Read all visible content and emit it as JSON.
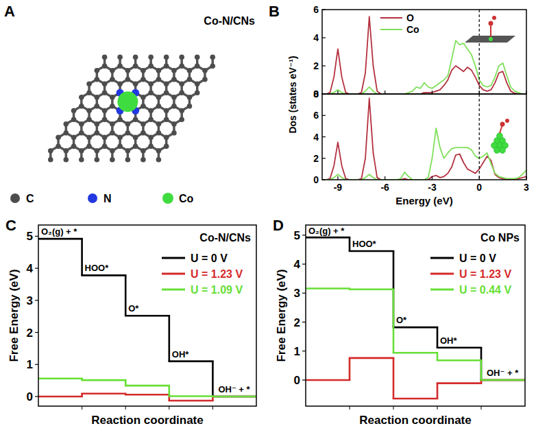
{
  "diagram": {
    "panel": "A",
    "title": "Co-N/CNs",
    "legend": [
      {
        "label": "C",
        "color": "#4d4d4d"
      },
      {
        "label": "N",
        "color": "#2238e0"
      },
      {
        "label": "Co",
        "color": "#3fdc3f"
      }
    ]
  },
  "chart_data": [
    {
      "type": "line",
      "panel": "B",
      "ylabel": "Dos (states eV⁻¹)",
      "x": [
        -10,
        -9.75,
        -9.5,
        -9.25,
        -9,
        -8.75,
        -8.5,
        -8.25,
        -8,
        -7.75,
        -7.5,
        -7.25,
        -7,
        -6.75,
        -6.5,
        -6.25,
        -6,
        -5.75,
        -5.5,
        -5.25,
        -5,
        -4.75,
        -4.5,
        -4.25,
        -4,
        -3.75,
        -3.5,
        -3.25,
        -3,
        -2.75,
        -2.5,
        -2.25,
        -2,
        -1.75,
        -1.5,
        -1.25,
        -1,
        -0.75,
        -0.5,
        -0.25,
        0,
        0.25,
        0.5,
        0.75,
        1,
        1.25,
        1.5,
        1.75,
        2,
        2.25,
        2.5,
        2.75,
        3
      ],
      "series": [
        {
          "name": "O",
          "color": "#b3303f",
          "values": [
            0,
            0,
            0.1,
            1.2,
            3.2,
            1.2,
            0.1,
            0,
            0,
            0,
            0.1,
            1.5,
            5.5,
            2.0,
            0.2,
            0,
            0,
            0,
            0,
            0,
            0,
            0,
            0,
            0,
            0,
            0,
            0.1,
            0.1,
            0.1,
            0.2,
            0.3,
            0.6,
            1.0,
            1.7,
            2.0,
            1.8,
            1.6,
            1.9,
            1.7,
            1.2,
            0.6,
            0.3,
            0.2,
            0.3,
            0.8,
            1.5,
            1.6,
            0.8,
            0.2,
            0.05,
            0,
            0,
            0
          ]
        },
        {
          "name": "Co",
          "color": "#7fe05a",
          "values": [
            0,
            0,
            0,
            0.1,
            0.3,
            0.1,
            0,
            0,
            0,
            0,
            0,
            0.2,
            0.5,
            0.2,
            0,
            0,
            0,
            0,
            0,
            0,
            0,
            0,
            0.1,
            0.2,
            0.5,
            0.4,
            0.8,
            0.5,
            0.4,
            0.6,
            0.8,
            1.0,
            1.3,
            2.5,
            3.8,
            3.5,
            3.6,
            3.2,
            2.8,
            2.0,
            1.0,
            0.6,
            0.5,
            0.6,
            1.2,
            2.0,
            2.2,
            1.3,
            0.5,
            0.2,
            0.1,
            0,
            0
          ]
        }
      ],
      "xlim": [
        -10,
        3
      ],
      "xticks": [
        -9,
        -6,
        -3,
        0,
        3
      ],
      "ylim": [
        0,
        6
      ],
      "yticks": [
        0,
        2,
        4,
        6
      ],
      "legend": "upper left",
      "tick_labels": "y",
      "annotations": [
        {
          "x": 0,
          "line_style": "dashed"
        }
      ]
    },
    {
      "type": "line",
      "xlabel": "Energy (eV)",
      "x": [
        -10,
        -9.75,
        -9.5,
        -9.25,
        -9,
        -8.75,
        -8.5,
        -8.25,
        -8,
        -7.75,
        -7.5,
        -7.25,
        -7,
        -6.75,
        -6.5,
        -6.25,
        -6,
        -5.75,
        -5.5,
        -5.25,
        -5,
        -4.75,
        -4.5,
        -4.25,
        -4,
        -3.75,
        -3.5,
        -3.25,
        -3,
        -2.75,
        -2.5,
        -2.25,
        -2,
        -1.75,
        -1.5,
        -1.25,
        -1,
        -0.75,
        -0.5,
        -0.25,
        0,
        0.25,
        0.5,
        0.75,
        1,
        1.25,
        1.5,
        1.75,
        2,
        2.25,
        2.5,
        2.75,
        3
      ],
      "series": [
        {
          "color": "#b3303f",
          "values": [
            0,
            0,
            0.1,
            1.3,
            3.5,
            1.3,
            0.1,
            0,
            0,
            0,
            0.1,
            2.0,
            7.6,
            2.5,
            0.2,
            0,
            0,
            0,
            0,
            0,
            0,
            0.1,
            0,
            0,
            0,
            0,
            0,
            0,
            0.3,
            0.4,
            0.2,
            0.3,
            0.6,
            1.2,
            2.3,
            2.4,
            1.6,
            1.0,
            0.8,
            0.6,
            1.0,
            1.6,
            2.2,
            1.8,
            0.5,
            0.2,
            0.1,
            0,
            0,
            0,
            0.1,
            0.2,
            0.3
          ]
        },
        {
          "color": "#7fe05a",
          "values": [
            0,
            0,
            0,
            0.2,
            0.5,
            0.2,
            0,
            0,
            0,
            0,
            0,
            0.2,
            0.5,
            0.2,
            0,
            0,
            0,
            0,
            0,
            0,
            0.1,
            0.7,
            0.3,
            0,
            0,
            0,
            0,
            0.2,
            2.0,
            4.8,
            3.0,
            2.0,
            2.5,
            2.9,
            3.0,
            3.0,
            3.0,
            3.0,
            2.8,
            2.2,
            2.0,
            2.2,
            2.5,
            1.5,
            0.6,
            0.3,
            0.2,
            0.1,
            0.1,
            0.1,
            0.2,
            0.5,
            0.9
          ]
        }
      ],
      "xlim": [
        -10,
        3
      ],
      "xticks": [
        -9,
        -6,
        -3,
        0,
        3
      ],
      "ylim": [
        0,
        8
      ],
      "yticks": [
        0,
        2,
        4,
        6,
        8
      ],
      "tick_labels": true,
      "annotations": [
        {
          "x": 0,
          "line_style": "dashed"
        }
      ]
    },
    {
      "type": "step",
      "panel": "C",
      "title": "Co-N/CNs",
      "categories": [
        "O₂(g) + *",
        "HOO*",
        "O*",
        "OH*",
        "OH⁻ + *"
      ],
      "series": [
        {
          "name": "U = 0 V",
          "color": "#000000",
          "values": [
            4.92,
            3.78,
            2.52,
            1.1,
            0
          ]
        },
        {
          "name": "U = 1.23 V",
          "color": "#d42a2a",
          "values": [
            0.0,
            0.09,
            0.06,
            -0.13,
            0
          ]
        },
        {
          "name": "U = 1.09 V",
          "color": "#66e035",
          "values": [
            0.56,
            0.51,
            0.34,
            0.01,
            0
          ]
        }
      ],
      "xlabel": "Reaction coordinate",
      "ylabel": "Free Energy (eV)",
      "ylim": [
        -0.3,
        5.35
      ],
      "yticks": [
        0,
        1,
        2,
        3,
        4,
        5
      ],
      "legend": "upper right",
      "tick_labels": "y"
    },
    {
      "type": "step",
      "panel": "D",
      "title": "Co NPs",
      "categories": [
        "O₂(g) + *",
        "HOO*",
        "O*",
        "OH*",
        "OH⁻ + *"
      ],
      "series": [
        {
          "name": "U = 0 V",
          "color": "#000000",
          "values": [
            4.92,
            4.45,
            1.82,
            1.12,
            0
          ]
        },
        {
          "name": "U = 1.23 V",
          "color": "#d42a2a",
          "values": [
            0.0,
            0.76,
            -0.64,
            -0.11,
            0
          ]
        },
        {
          "name": "U = 0.44 V",
          "color": "#66e035",
          "values": [
            3.16,
            3.13,
            0.94,
            0.68,
            0
          ]
        }
      ],
      "xlabel": "Reaction coordinate",
      "ylabel": "Free Energy (eV)",
      "ylim": [
        -0.9,
        5.35
      ],
      "yticks": [
        0,
        1,
        2,
        3,
        4,
        5
      ],
      "legend": "upper right",
      "tick_labels": "y"
    }
  ]
}
